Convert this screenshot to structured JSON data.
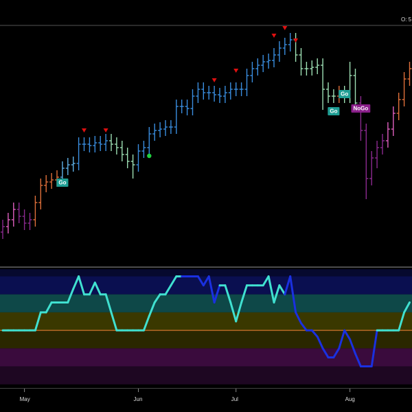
{
  "chart_data": [
    {
      "type": "ohlc",
      "annotation": "O: 5",
      "categories": [
        null,
        null,
        null,
        null,
        "May",
        null,
        null,
        null,
        null,
        null,
        null,
        null,
        null,
        null,
        null,
        null,
        null,
        null,
        null,
        null,
        null,
        null,
        null,
        null,
        null,
        "Jun",
        null,
        null,
        null,
        null,
        null,
        null,
        null,
        null,
        null,
        null,
        null,
        null,
        null,
        null,
        null,
        null,
        null,
        "Jul",
        null,
        null,
        null,
        null,
        null,
        null,
        null,
        null,
        null,
        null,
        null,
        null,
        null,
        null,
        null,
        null,
        null,
        null,
        null,
        null,
        "Aug",
        null,
        null,
        null,
        null,
        null,
        null,
        null,
        null,
        null,
        null,
        null
      ],
      "ylim": [
        0,
        350
      ],
      "open": [
        50,
        58,
        68,
        83,
        73,
        63,
        68,
        93,
        118,
        123,
        126,
        130,
        143,
        148,
        150,
        178,
        178,
        176,
        180,
        178,
        183,
        178,
        173,
        163,
        153,
        148,
        168,
        173,
        193,
        198,
        200,
        203,
        203,
        233,
        233,
        230,
        248,
        258,
        253,
        253,
        250,
        248,
        253,
        258,
        258,
        258,
        278,
        288,
        293,
        298,
        300,
        308,
        318,
        323,
        330,
        308,
        288,
        288,
        290,
        293,
        258,
        248,
        248,
        253,
        248,
        278,
        238,
        198,
        128,
        158,
        173,
        183,
        200,
        223,
        243,
        273
      ],
      "high": [
        68,
        78,
        93,
        93,
        83,
        78,
        103,
        128,
        133,
        136,
        140,
        153,
        158,
        160,
        188,
        188,
        188,
        190,
        190,
        193,
        193,
        188,
        183,
        173,
        163,
        178,
        183,
        203,
        208,
        210,
        213,
        213,
        243,
        243,
        243,
        258,
        268,
        268,
        263,
        263,
        260,
        263,
        268,
        268,
        268,
        288,
        298,
        303,
        308,
        310,
        318,
        328,
        333,
        340,
        340,
        318,
        298,
        300,
        303,
        303,
        268,
        258,
        263,
        263,
        298,
        288,
        248,
        208,
        168,
        183,
        193,
        210,
        233,
        253,
        283,
        298
      ],
      "low": [
        40,
        48,
        58,
        63,
        53,
        53,
        58,
        83,
        108,
        113,
        116,
        120,
        133,
        138,
        140,
        168,
        166,
        166,
        168,
        168,
        168,
        163,
        153,
        143,
        128,
        138,
        158,
        163,
        183,
        188,
        190,
        193,
        193,
        223,
        220,
        220,
        238,
        243,
        243,
        240,
        238,
        238,
        243,
        248,
        248,
        248,
        268,
        278,
        283,
        288,
        290,
        298,
        308,
        313,
        298,
        278,
        278,
        278,
        280,
        228,
        238,
        238,
        238,
        238,
        238,
        228,
        183,
        98,
        118,
        143,
        163,
        173,
        190,
        213,
        233,
        263
      ],
      "close": [
        58,
        68,
        83,
        73,
        63,
        68,
        93,
        118,
        123,
        126,
        130,
        143,
        148,
        150,
        178,
        178,
        176,
        180,
        178,
        183,
        178,
        173,
        163,
        153,
        148,
        168,
        173,
        193,
        198,
        200,
        203,
        203,
        233,
        233,
        230,
        248,
        258,
        253,
        253,
        250,
        248,
        253,
        258,
        258,
        258,
        278,
        288,
        293,
        298,
        300,
        308,
        318,
        323,
        330,
        308,
        288,
        288,
        290,
        293,
        258,
        248,
        248,
        253,
        248,
        278,
        238,
        198,
        128,
        158,
        173,
        183,
        200,
        223,
        243,
        273,
        288
      ],
      "colors": [
        "#8b2a8f",
        "#e060c0",
        "#e060c0",
        "#8b2a8f",
        "#8b2a8f",
        "#8b2a8f",
        "#e0703a",
        "#e0703a",
        "#e0703a",
        "#e0703a",
        "#e0703a",
        "#5fb0e6",
        "#5fb0e6",
        "#5fb0e6",
        "#3a8ee0",
        "#3a8ee0",
        "#3a8ee0",
        "#3a8ee0",
        "#3a8ee0",
        "#3a8ee0",
        "#9ee0b4",
        "#9ee0b4",
        "#9ee0b4",
        "#9ee0b4",
        "#9ee0b4",
        "#3a8ee0",
        "#3a8ee0",
        "#3a8ee0",
        "#3a8ee0",
        "#3a8ee0",
        "#3a8ee0",
        "#3a8ee0",
        "#3a8ee0",
        "#3a8ee0",
        "#3a8ee0",
        "#3a8ee0",
        "#3a8ee0",
        "#3a8ee0",
        "#3a8ee0",
        "#3a8ee0",
        "#3a8ee0",
        "#3a8ee0",
        "#3a8ee0",
        "#3a8ee0",
        "#3a8ee0",
        "#3a8ee0",
        "#3a8ee0",
        "#3a8ee0",
        "#3a8ee0",
        "#3a8ee0",
        "#3a8ee0",
        "#3a8ee0",
        "#3a8ee0",
        "#3a8ee0",
        "#9ee0b4",
        "#9ee0b4",
        "#9ee0b4",
        "#9ee0b4",
        "#9ee0b4",
        "#9ee0b4",
        "#9ee0b4",
        "#9ee0b4",
        "#e0703a",
        "#9ee0b4",
        "#9ee0b4",
        "#9ee0b4",
        "#8b2a8f",
        "#8b2a8f",
        "#8b2a8f",
        "#8b2a8f",
        "#8b2a8f",
        "#e060c0",
        "#e060c0",
        "#e0703a",
        "#e0703a",
        "#e0703a"
      ],
      "sell_markers": {
        "color": "#e01010",
        "points": [
          {
            "bar": 15,
            "value": 201
          },
          {
            "bar": 19,
            "value": 201
          },
          {
            "bar": 39,
            "value": 274
          },
          {
            "bar": 43,
            "value": 288
          },
          {
            "bar": 50,
            "value": 339
          },
          {
            "bar": 52,
            "value": 350
          },
          {
            "bar": 54,
            "value": 332
          }
        ]
      },
      "buy_markers": {
        "color": "#20d040",
        "points": [
          {
            "bar": 27,
            "value": 161
          }
        ]
      },
      "signals": [
        {
          "label": "Go",
          "bar": 11,
          "value": 122,
          "color": "#1f9e94"
        },
        {
          "label": "Go",
          "bar": 63,
          "value": 251,
          "color": "#1f9e94"
        },
        {
          "label": "Go",
          "bar": 61,
          "value": 226,
          "color": "#1f9e94"
        },
        {
          "label": "NoGo",
          "bar": 66,
          "value": 230,
          "color": "#8a1f8a"
        }
      ]
    },
    {
      "type": "line",
      "ylim": [
        -3.2,
        3.4
      ],
      "values": [
        0,
        0,
        0,
        0,
        0,
        0,
        0,
        1,
        1,
        1.55,
        1.55,
        1.55,
        1.55,
        2.3,
        3,
        2,
        2,
        2.65,
        2,
        2,
        1,
        0,
        0,
        0,
        0,
        0,
        0,
        0.8,
        1.55,
        2,
        2,
        2.5,
        3,
        3,
        3,
        3,
        3,
        2.5,
        3,
        1.55,
        2.5,
        2.5,
        1.55,
        0.5,
        1.55,
        2.5,
        2.5,
        2.5,
        2.5,
        3,
        1.55,
        2.5,
        2,
        3,
        1,
        0.4,
        0,
        0,
        -0.35,
        -1,
        -1.5,
        -1.5,
        -1,
        0,
        -0.5,
        -1.3,
        -2,
        -2,
        -2,
        0,
        0,
        0,
        0,
        0,
        1,
        1.55
      ],
      "colors": [
        "#40e0d0",
        "#40e0d0",
        "#40e0d0",
        "#40e0d0",
        "#40e0d0",
        "#40e0d0",
        "#40e0d0",
        "#40e0d0",
        "#40e0d0",
        "#40e0d0",
        "#40e0d0",
        "#40e0d0",
        "#40e0d0",
        "#40e0d0",
        "#40e0d0",
        "#40e0d0",
        "#40e0d0",
        "#40e0d0",
        "#40e0d0",
        "#40e0d0",
        "#40e0d0",
        "#40e0d0",
        "#40e0d0",
        "#40e0d0",
        "#40e0d0",
        "#40e0d0",
        "#40e0d0",
        "#40e0d0",
        "#40e0d0",
        "#40e0d0",
        "#40e0d0",
        "#40e0d0",
        "#40e0d0",
        "#40e0d0",
        "#1a30e0",
        "#1a30e0",
        "#1a30e0",
        "#1a30e0",
        "#1a30e0",
        "#1a30e0",
        "#1a30e0",
        "#40e0d0",
        "#40e0d0",
        "#40e0d0",
        "#40e0d0",
        "#40e0d0",
        "#40e0d0",
        "#40e0d0",
        "#40e0d0",
        "#40e0d0",
        "#40e0d0",
        "#40e0d0",
        "#40e0d0",
        "#1a30e0",
        "#1a30e0",
        "#1a30e0",
        "#1a30e0",
        "#1a30e0",
        "#1a30e0",
        "#1a30e0",
        "#1a30e0",
        "#1a30e0",
        "#1a30e0",
        "#1a30e0",
        "#1a30e0",
        "#1a30e0",
        "#1a30e0",
        "#1a30e0",
        "#1a30e0",
        "#1a30e0",
        "#40e0d0",
        "#40e0d0",
        "#40e0d0",
        "#40e0d0",
        "#40e0d0",
        "#40e0d0"
      ],
      "bands": [
        {
          "from": 3,
          "to": 3.4,
          "color": "#06092e"
        },
        {
          "from": 2,
          "to": 3,
          "color": "#0a0f50"
        },
        {
          "from": 1,
          "to": 2,
          "color": "#0e4848"
        },
        {
          "from": 0,
          "to": 1,
          "color": "#3a3800"
        },
        {
          "from": -1,
          "to": 0,
          "color": "#2a2700"
        },
        {
          "from": -2,
          "to": -1,
          "color": "#3a0b3d"
        },
        {
          "from": -3,
          "to": -2,
          "color": "#1e0722"
        }
      ],
      "reference": {
        "value": 0,
        "color": "#d0742c"
      }
    }
  ]
}
